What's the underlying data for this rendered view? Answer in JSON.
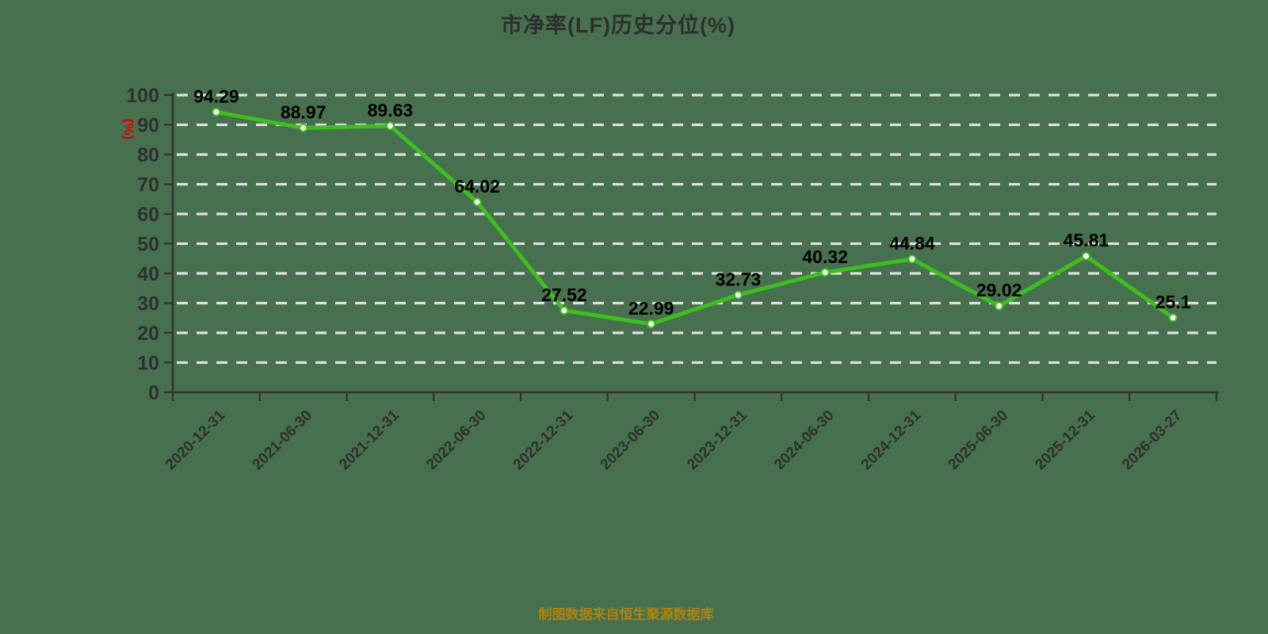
{
  "title": "市净率(LF)历史分位(%)",
  "footer": "制图数据来自恒生聚源数据库",
  "y_axis_name": "(%)",
  "colors": {
    "background": "#47714E",
    "line": "#3FBE20",
    "marker_fill": "#FFFFFF",
    "grid": "#E0E0E0",
    "axis": "#333333",
    "tick_label": "#2F2F2F",
    "data_label": "#000000",
    "title": "#2E2E2E",
    "footer": "#AD8310",
    "y_axis_name_color": "#E00000"
  },
  "chart_data": {
    "type": "line",
    "title": "市净率(LF)历史分位(%)",
    "xlabel": "",
    "ylabel": "(%)",
    "categories": [
      "2020-12-31",
      "2021-06-30",
      "2021-12-31",
      "2022-06-30",
      "2022-12-31",
      "2023-06-30",
      "2023-12-31",
      "2024-06-30",
      "2024-12-31",
      "2025-06-30",
      "2025-12-31",
      "2026-03-27"
    ],
    "values": [
      94.29,
      88.97,
      89.63,
      64.02,
      27.52,
      22.99,
      32.73,
      40.32,
      44.84,
      29.02,
      45.81,
      25.1
    ],
    "ylim": [
      0,
      100
    ],
    "ytick_interval": 10,
    "grid": true,
    "grid_style": "dashed",
    "legend": false,
    "x_label_rotation": 45,
    "data_labels": true
  }
}
